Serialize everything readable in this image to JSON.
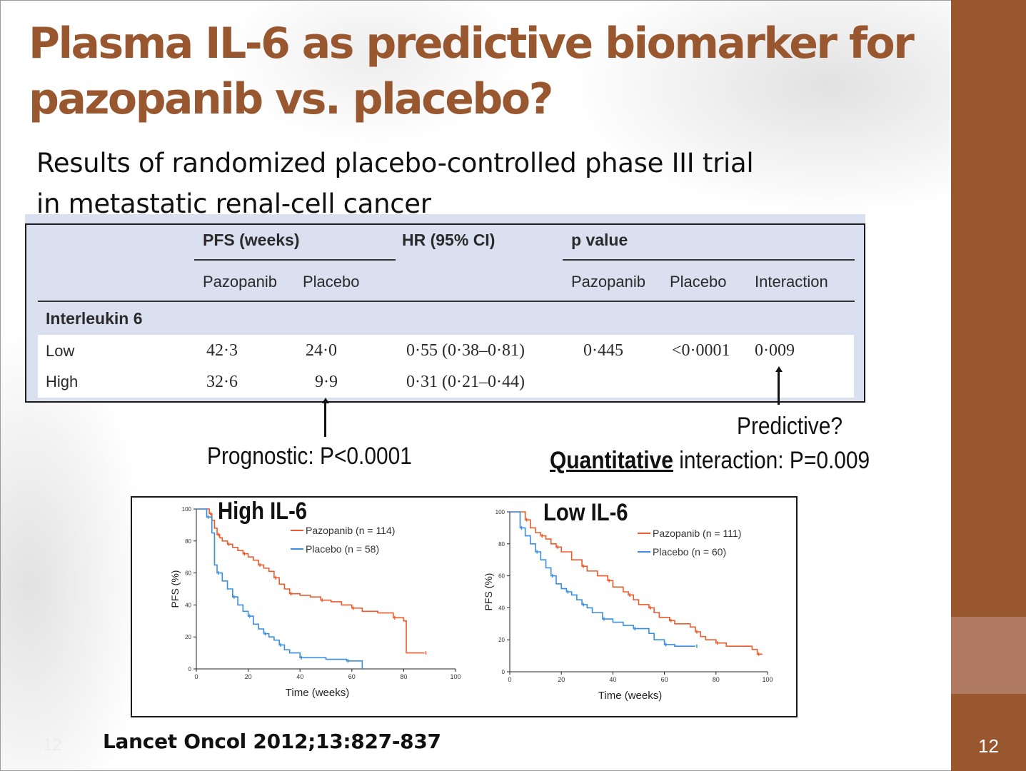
{
  "title": "Plasma IL-6 as predictive biomarker for pazopanib vs. placebo?",
  "subtitle_line1": "Results of randomized placebo-controlled phase III trial",
  "subtitle_line2": "in metastatic renal-cell cancer",
  "table": {
    "col_pfs": "PFS (weeks)",
    "col_hr": "HR (95% CI)",
    "col_p": "p value",
    "sub_pazopanib": "Pazopanib",
    "sub_placebo": "Placebo",
    "sub_p_pazopanib": "Pazopanib",
    "sub_p_placebo": "Placebo",
    "sub_interaction": "Interaction",
    "group": "Interleukin 6",
    "rows": [
      {
        "label": "Low",
        "pfs_pazopanib": "42·3",
        "pfs_placebo": "24·0",
        "hr": "0·55 (0·38–0·81)",
        "p_pazopanib": "0·445",
        "p_placebo": "<0·0001",
        "p_interaction": "0·009"
      },
      {
        "label": "High",
        "pfs_pazopanib": "32·6",
        "pfs_placebo": "9·9",
        "hr": "0·31 (0·21–0·44)",
        "p_pazopanib": "",
        "p_placebo": "",
        "p_interaction": ""
      }
    ]
  },
  "annotations": {
    "prognostic": "Prognostic:  P<0.0001",
    "predictive": "Predictive?",
    "quantitative_bold": "Quantitative",
    "quantitative_rest": " interaction:  P=0.009"
  },
  "citation": "Lancet Oncol 2012;13:827-837",
  "slide_number": "12",
  "colors": {
    "accent": "#98572f",
    "pazopanib": "#ee5a2a",
    "placebo": "#3a8ee0"
  },
  "chart_data": [
    {
      "type": "line",
      "title": "High IL-6",
      "xlabel": "Time (weeks)",
      "ylabel": "PFS (%)",
      "xlim": [
        0,
        100
      ],
      "ylim": [
        0,
        100
      ],
      "xticks": [
        "0",
        "20",
        "40",
        "60",
        "80",
        "100"
      ],
      "yticks": [
        "0",
        "20",
        "40",
        "60",
        "80",
        "100"
      ],
      "legend": "top-right",
      "series": [
        {
          "name": "Pazopanib (n = 114)",
          "color": "#ee5a2a",
          "x": [
            0,
            5,
            6,
            7,
            8,
            9,
            10,
            12,
            14,
            16,
            18,
            20,
            22,
            24,
            26,
            28,
            30,
            32,
            34,
            36,
            40,
            44,
            48,
            52,
            56,
            60,
            64,
            70,
            76,
            80,
            81,
            88
          ],
          "y": [
            100,
            97,
            93,
            88,
            84,
            82,
            80,
            78,
            76,
            74,
            72,
            70,
            68,
            65,
            63,
            61,
            57,
            53,
            50,
            47,
            46,
            45,
            43,
            42,
            40,
            38,
            36,
            35,
            32,
            30,
            10,
            10
          ]
        },
        {
          "name": "Placebo (n = 58)",
          "color": "#3a8ee0",
          "x": [
            0,
            4,
            6,
            7,
            8,
            10,
            12,
            14,
            16,
            18,
            20,
            22,
            24,
            26,
            28,
            30,
            32,
            34,
            36,
            40,
            46,
            50,
            58,
            62,
            64
          ],
          "y": [
            100,
            95,
            85,
            65,
            60,
            55,
            50,
            45,
            40,
            36,
            33,
            28,
            25,
            22,
            20,
            18,
            15,
            12,
            10,
            7,
            7,
            6,
            5,
            5,
            0
          ]
        }
      ]
    },
    {
      "type": "line",
      "title": "Low IL-6",
      "xlabel": "Time (weeks)",
      "ylabel": "PFS (%)",
      "xlim": [
        0,
        100
      ],
      "ylim": [
        0,
        100
      ],
      "xticks": [
        "0",
        "20",
        "40",
        "60",
        "80",
        "100"
      ],
      "yticks": [
        "0",
        "20",
        "40",
        "60",
        "80",
        "100"
      ],
      "legend": "top-right",
      "series": [
        {
          "name": "Pazopanib (n = 111)",
          "color": "#ee5a2a",
          "x": [
            0,
            6,
            8,
            10,
            12,
            14,
            16,
            18,
            20,
            24,
            28,
            30,
            34,
            38,
            40,
            44,
            46,
            48,
            50,
            54,
            56,
            58,
            62,
            64,
            70,
            72,
            74,
            76,
            80,
            84,
            94,
            96,
            98
          ],
          "y": [
            100,
            95,
            90,
            87,
            85,
            83,
            80,
            78,
            75,
            70,
            66,
            63,
            60,
            57,
            53,
            50,
            48,
            45,
            42,
            40,
            37,
            34,
            32,
            30,
            28,
            25,
            22,
            20,
            18,
            16,
            14,
            11,
            11
          ]
        },
        {
          "name": "Placebo (n = 60)",
          "color": "#3a8ee0",
          "x": [
            0,
            4,
            6,
            8,
            10,
            12,
            14,
            16,
            18,
            20,
            22,
            24,
            26,
            28,
            30,
            32,
            36,
            40,
            44,
            48,
            54,
            56,
            60,
            64,
            70,
            72
          ],
          "y": [
            100,
            90,
            85,
            80,
            75,
            70,
            65,
            60,
            55,
            52,
            50,
            48,
            45,
            42,
            40,
            37,
            33,
            31,
            29,
            27,
            24,
            20,
            17,
            16,
            16,
            16
          ]
        }
      ]
    }
  ]
}
